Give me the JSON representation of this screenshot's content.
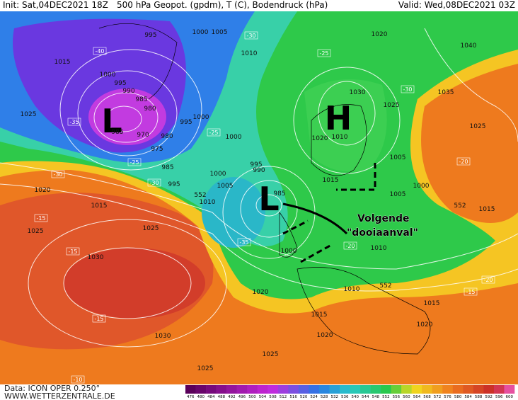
{
  "header": {
    "init": "Init: Sat,04DEC2021 18Z",
    "title": "500 hPa Geopot. (gpdm), T (C), Bodendruck (hPa)",
    "valid": "Valid: Wed,08DEC2021 03Z"
  },
  "footer": {
    "data": "Data: ICON OPER 0.250°",
    "site": "WWW.WETTERZENTRALE.DE"
  },
  "annotation": {
    "line1": "Volgende",
    "line2": "\"dooiaanval\""
  },
  "pressure_centers": [
    "L",
    "H",
    "L"
  ],
  "isobar_labels": [
    "995",
    "1000",
    "1005",
    "1010",
    "1015",
    "1000",
    "995",
    "990",
    "985",
    "980",
    "985",
    "970",
    "975",
    "980",
    "995",
    "1000",
    "1000",
    "985",
    "995",
    "1000",
    "1005",
    "1010",
    "1015",
    "1020",
    "1025",
    "1025",
    "1030",
    "1030",
    "1025",
    "1025",
    "1020",
    "1015",
    "1020",
    "1010",
    "1010",
    "1000",
    "1005",
    "1015",
    "995",
    "990",
    "985",
    "1000",
    "1010",
    "1020",
    "1025",
    "1030",
    "1035",
    "1040",
    "1025",
    "1020",
    "1015",
    "1005",
    "1020",
    "1015",
    "1025",
    "552",
    "552",
    "552"
  ],
  "temperature_labels": [
    "-40",
    "-35",
    "-30",
    "-30",
    "-25",
    "-25",
    "-30",
    "-25",
    "-30",
    "-20",
    "-15",
    "-15",
    "-15",
    "-15",
    "-20",
    "-10",
    "-35",
    "-20"
  ],
  "colorbar": {
    "labels": [
      476,
      480,
      484,
      488,
      492,
      496,
      500,
      504,
      508,
      512,
      516,
      520,
      524,
      528,
      532,
      536,
      540,
      544,
      548,
      552,
      556,
      560,
      564,
      568,
      572,
      576,
      580,
      584,
      588,
      592,
      596,
      600
    ]
  }
}
